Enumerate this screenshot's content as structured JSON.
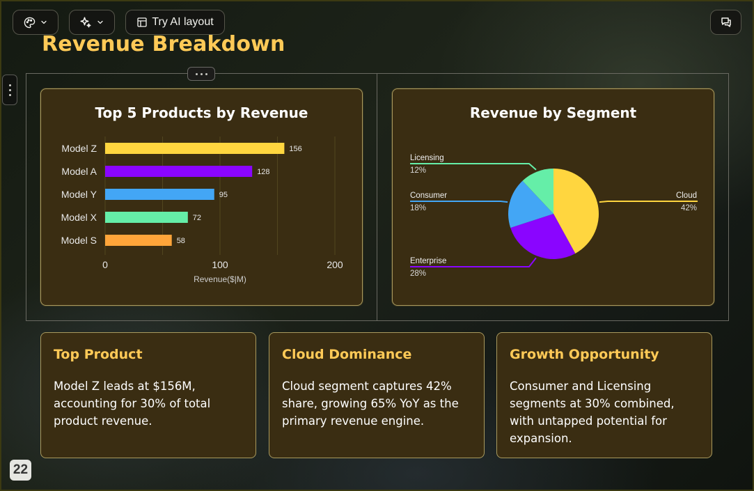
{
  "toolbar": {
    "theme_icon": "palette-icon",
    "ai_icon": "sparkles-icon",
    "layout_label": "Try AI layout",
    "comment_icon": "comments-icon"
  },
  "slide": {
    "title": "Revenue Breakdown",
    "page_number": "22"
  },
  "colors": {
    "accent": "#ffca57",
    "card_bg": "#3a2d12",
    "card_border": "#a99a5e"
  },
  "bar_chart": {
    "title": "Top 5 Products by Revenue",
    "xlabel": "Revenue($|M)"
  },
  "pie_chart": {
    "title": "Revenue by Segment"
  },
  "chart_data": [
    {
      "type": "bar",
      "orientation": "horizontal",
      "title": "Top 5 Products by Revenue",
      "categories": [
        "Model Z",
        "Model A",
        "Model Y",
        "Model X",
        "Model S"
      ],
      "values": [
        156,
        128,
        95,
        72,
        58
      ],
      "colors": [
        "#ffd63f",
        "#8a05ff",
        "#43a6f5",
        "#65eea8",
        "#ffa53a"
      ],
      "xlabel": "Revenue($|M)",
      "ylabel": "",
      "xlim": [
        0,
        200
      ],
      "xticks": [
        "0",
        "100",
        "200"
      ],
      "grid": true
    },
    {
      "type": "pie",
      "title": "Revenue by Segment",
      "labels": [
        "Cloud",
        "Enterprise",
        "Consumer",
        "Licensing"
      ],
      "values": [
        42,
        28,
        18,
        12
      ],
      "value_labels": [
        "42%",
        "28%",
        "18%",
        "12%"
      ],
      "colors": [
        "#ffd63f",
        "#8a05ff",
        "#43a6f5",
        "#65eea8"
      ]
    }
  ],
  "insights": [
    {
      "title": "Top Product",
      "text": "Model Z leads at $156M, accounting for 30% of total product revenue."
    },
    {
      "title": "Cloud Dominance",
      "text": "Cloud segment captures 42% share, growing 65% YoY as the primary revenue engine."
    },
    {
      "title": "Growth Opportunity",
      "text": "Consumer and Licensing segments at 30% combined, with untapped potential for expansion."
    }
  ]
}
